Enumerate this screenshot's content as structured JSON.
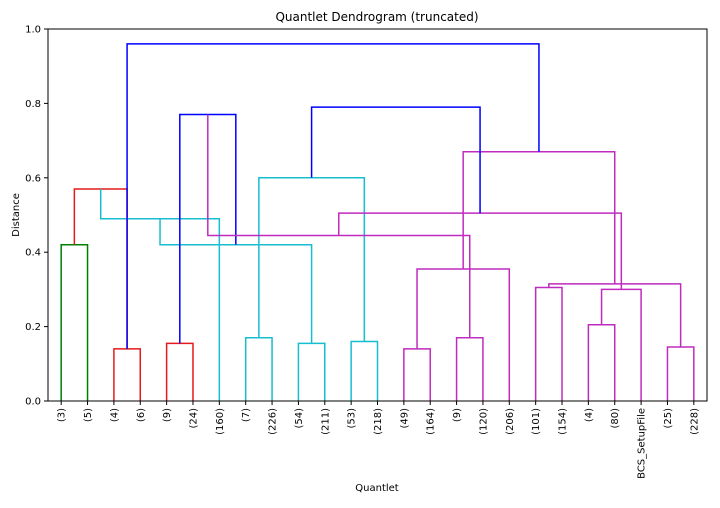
{
  "chart_data": {
    "type": "dendrogram",
    "title": "Quantlet Dendrogram (truncated)",
    "xlabel": "Quantlet",
    "ylabel": "Distance",
    "ylim": [
      0,
      1.0
    ],
    "yticks": [
      "0.0",
      "0.2",
      "0.4",
      "0.6",
      "0.8",
      "1.0"
    ],
    "grid": false,
    "leaves": [
      "(3)",
      "(5)",
      "(4)",
      "(6)",
      "(9)",
      "(24)",
      "(160)",
      "(7)",
      "(226)",
      "(54)",
      "(211)",
      "(53)",
      "(218)",
      "(49)",
      "(164)",
      "(9)",
      "(120)",
      "(206)",
      "(101)",
      "(154)",
      "(4)",
      "(80)",
      "BCS_SetupFile",
      "(25)",
      "(228)"
    ],
    "colors": {
      "green": "#008000",
      "red": "#e41a1c",
      "cyan": "#17becf",
      "magenta": "#bf2bbf",
      "blue": "#0000ff"
    },
    "links": [
      {
        "a": 0,
        "b": 1,
        "height": 0.42,
        "color": "green"
      },
      {
        "a": 2,
        "b": 3,
        "height": 0.14,
        "color": "red"
      },
      {
        "a": 4,
        "b": 5,
        "height": 0.155,
        "color": "red"
      },
      {
        "a": 25,
        "b": 26,
        "height": 0.57,
        "color": "red"
      },
      {
        "a": 7,
        "b": 8,
        "height": 0.17,
        "color": "cyan"
      },
      {
        "a": 6,
        "b": 28,
        "height": 0.49,
        "color": "cyan"
      },
      {
        "a": 9,
        "b": 10,
        "height": 0.155,
        "color": "cyan"
      },
      {
        "a": 11,
        "b": 12,
        "height": 0.16,
        "color": "cyan"
      },
      {
        "a": 30,
        "b": 31,
        "height": 0.42,
        "color": "cyan"
      },
      {
        "a": 29,
        "b": 32,
        "height": 0.6,
        "color": "cyan"
      },
      {
        "a": 27,
        "b": 33,
        "height": 0.77,
        "color": "blue"
      },
      {
        "a": 13,
        "b": 14,
        "height": 0.14,
        "color": "magenta"
      },
      {
        "a": 15,
        "b": 16,
        "height": 0.17,
        "color": "magenta"
      },
      {
        "a": 36,
        "b": 17,
        "height": 0.355,
        "color": "magenta"
      },
      {
        "a": 35,
        "b": 37,
        "height": 0.445,
        "color": "magenta"
      },
      {
        "a": 18,
        "b": 19,
        "height": 0.305,
        "color": "magenta"
      },
      {
        "a": 20,
        "b": 21,
        "height": 0.205,
        "color": "magenta"
      },
      {
        "a": 23,
        "b": 24,
        "height": 0.145,
        "color": "magenta"
      },
      {
        "a": 22,
        "b": 41,
        "height": 0.3,
        "color": "magenta"
      },
      {
        "a": 40,
        "b": 42,
        "height": 0.315,
        "color": "magenta"
      },
      {
        "a": 39,
        "b": 43,
        "height": 0.505,
        "color": "magenta"
      },
      {
        "a": 38,
        "b": 44,
        "height": 0.67,
        "color": "magenta"
      },
      {
        "a": 34,
        "b": 45,
        "height": 0.79,
        "color": "blue"
      },
      {
        "a": 26,
        "b": 46,
        "height": 0.96,
        "color": "blue"
      }
    ]
  }
}
